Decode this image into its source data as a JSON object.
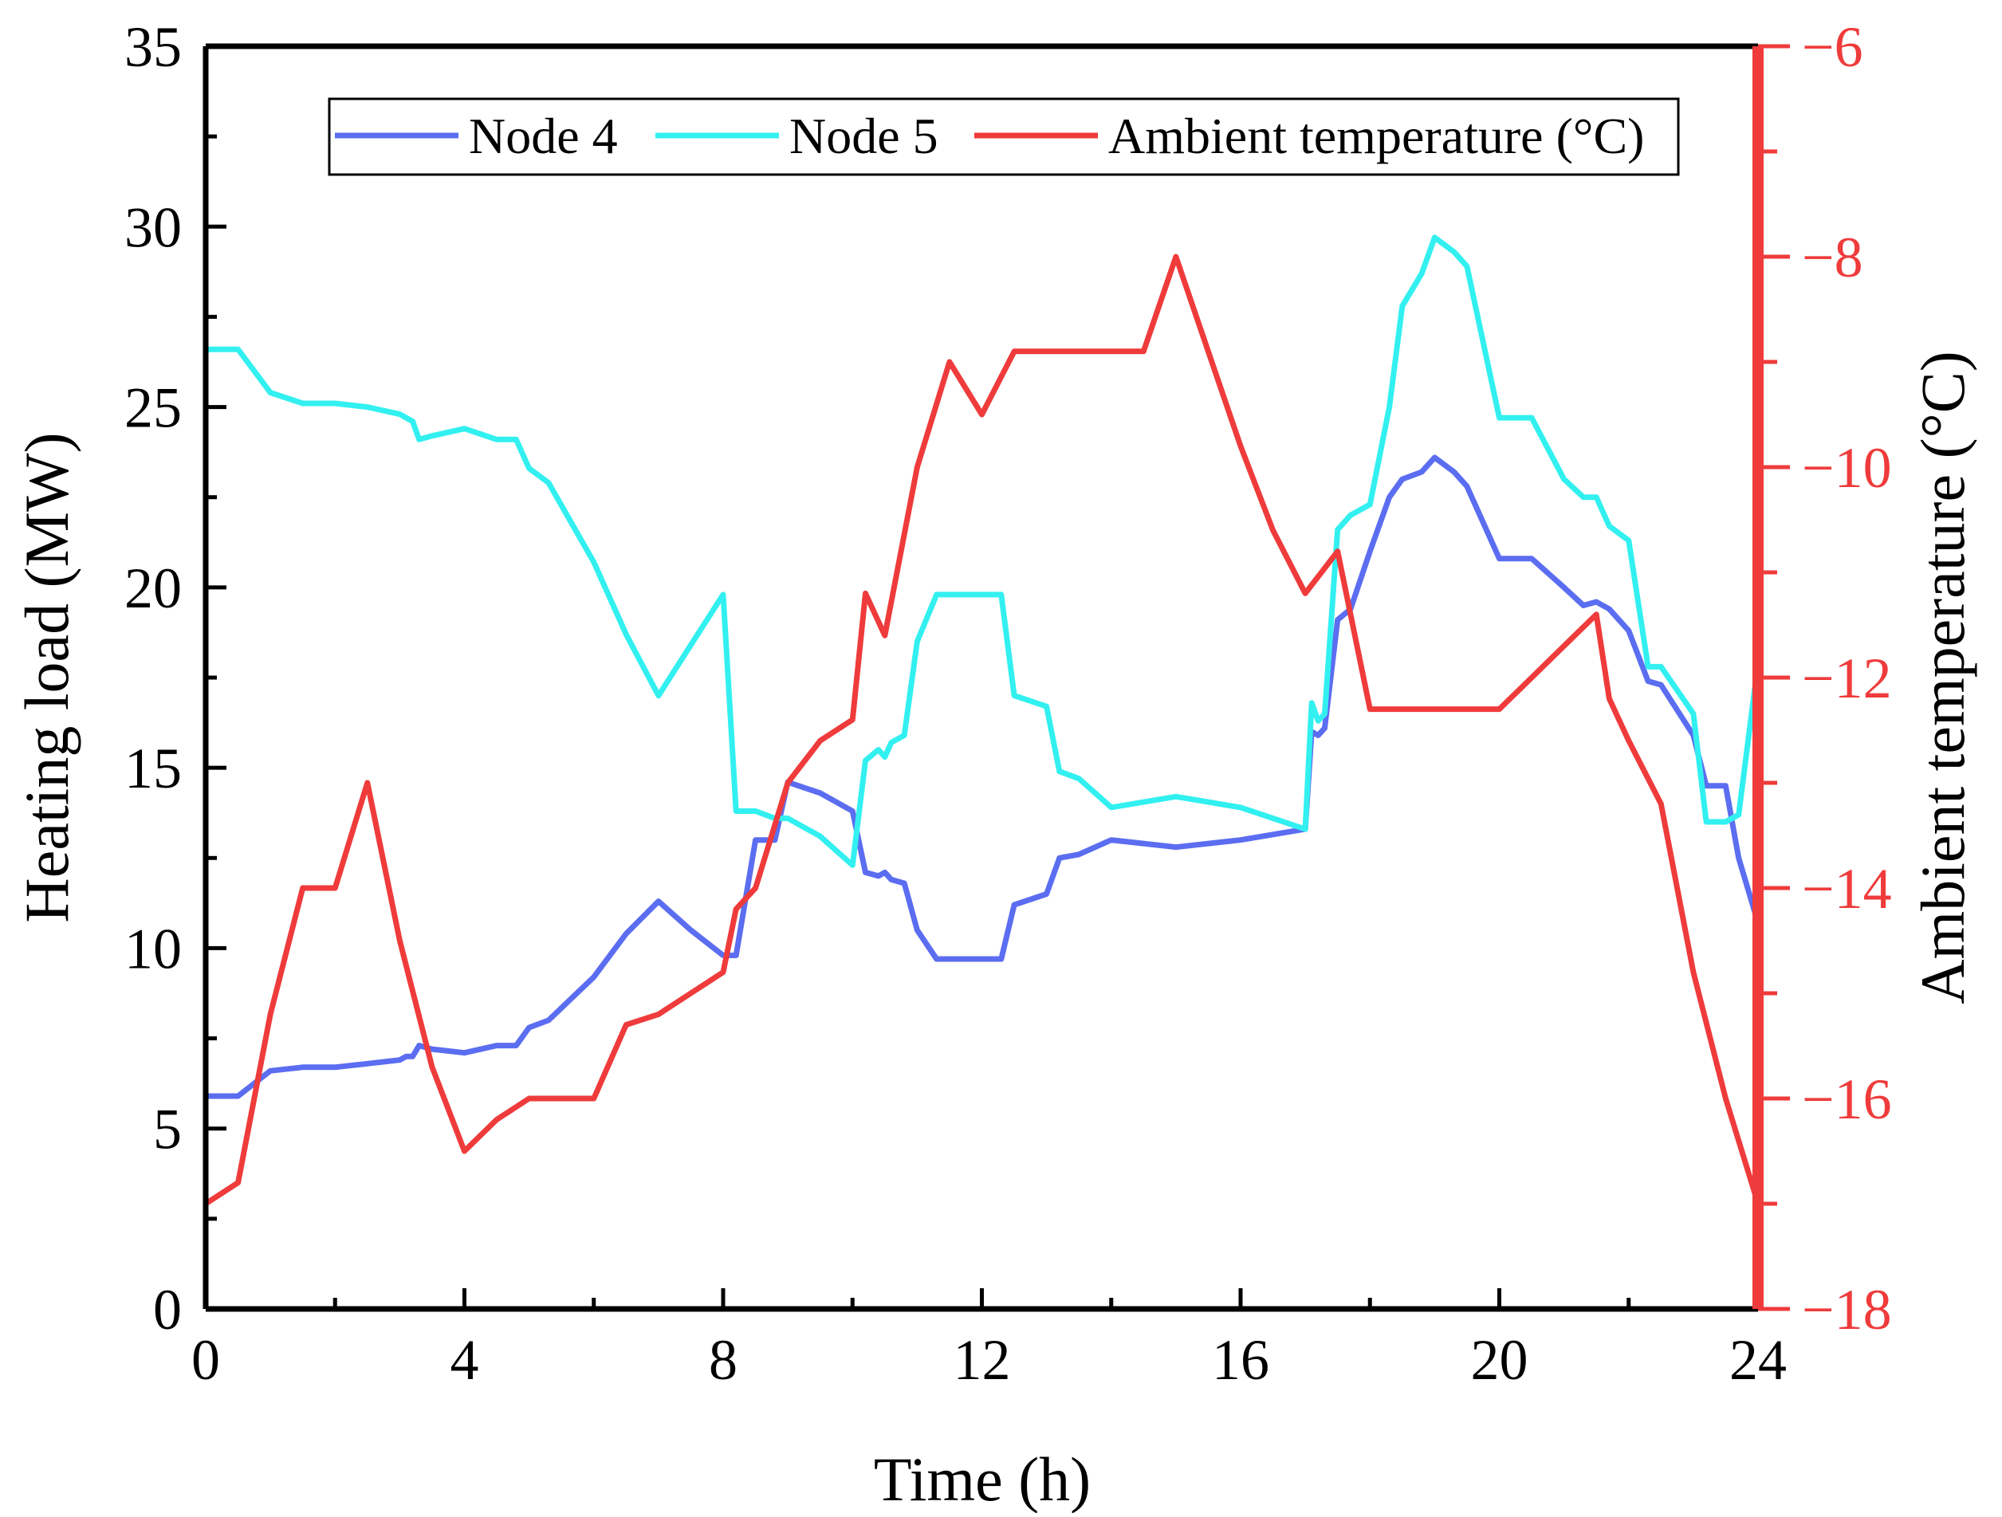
{
  "chart_data": {
    "type": "line",
    "title": "",
    "xlabel": "Time (h)",
    "ylabel": "Heating load (MW)",
    "y2label": "Ambient temperature (°C)",
    "xlim": [
      0,
      24
    ],
    "ylim": [
      0,
      35
    ],
    "y2lim": [
      -18,
      -6
    ],
    "xticks": [
      0,
      4,
      8,
      12,
      16,
      20,
      24
    ],
    "yticks": [
      0,
      5,
      10,
      15,
      20,
      25,
      30,
      35
    ],
    "y2ticks": [
      -18,
      -16,
      -14,
      -12,
      -10,
      -8,
      -6
    ],
    "xtick_labels": [
      "0",
      "4",
      "8",
      "12",
      "16",
      "20",
      "24"
    ],
    "ytick_labels": [
      "0",
      "5",
      "10",
      "15",
      "20",
      "25",
      "30",
      "35"
    ],
    "y2tick_labels": [
      "−18",
      "−16",
      "−14",
      "−12",
      "−10",
      "−8",
      "−6"
    ],
    "grid": false,
    "legend": {
      "placement": "top-center",
      "entries": [
        "Node 4",
        "Node 5",
        "Ambient temperature (°C)"
      ]
    },
    "colors": {
      "node4": "#5B6DF0",
      "node5": "#33F0F0",
      "ambient": "#EF3B3B",
      "axis": "#000000",
      "right_axis": "#EF3B3B"
    },
    "series": [
      {
        "name": "Node 4",
        "axis": "left",
        "color": "#5B6DF0",
        "x": [
          0,
          0.5,
          1,
          1.5,
          2,
          2.5,
          3,
          3.1,
          3.2,
          3.3,
          3.5,
          4,
          4.5,
          4.8,
          5,
          5.3,
          6,
          6.5,
          7,
          7.5,
          8,
          8.2,
          8.5,
          8.8,
          9,
          9.5,
          10,
          10.2,
          10.4,
          10.5,
          10.6,
          10.8,
          11,
          11.3,
          11.5,
          12,
          12.3,
          12.5,
          13,
          13.2,
          13.5,
          14,
          15,
          16,
          17,
          17.1,
          17.2,
          17.3,
          17.5,
          17.7,
          18,
          18.3,
          18.5,
          18.8,
          19,
          19.3,
          19.5,
          20,
          20.5,
          21,
          21.3,
          21.5,
          21.7,
          22,
          22.3,
          22.5,
          23,
          23.2,
          23.5,
          23.7,
          24
        ],
        "y": [
          5.9,
          5.9,
          6.6,
          6.7,
          6.7,
          6.8,
          6.9,
          7.0,
          7.0,
          7.3,
          7.2,
          7.1,
          7.3,
          7.3,
          7.8,
          8.0,
          9.2,
          10.4,
          11.3,
          10.5,
          9.8,
          9.8,
          13.0,
          13.0,
          14.6,
          14.3,
          13.8,
          12.1,
          12.0,
          12.1,
          11.9,
          11.8,
          10.5,
          9.7,
          9.7,
          9.7,
          9.7,
          11.2,
          11.5,
          12.5,
          12.6,
          13.0,
          12.8,
          13.0,
          13.3,
          16.0,
          15.9,
          16.1,
          19.1,
          19.4,
          21.0,
          22.5,
          23.0,
          23.2,
          23.6,
          23.2,
          22.8,
          20.8,
          20.8,
          20.0,
          19.5,
          19.6,
          19.4,
          18.8,
          17.4,
          17.3,
          15.9,
          14.5,
          14.5,
          12.5,
          10.7
        ]
      },
      {
        "name": "Node 5",
        "axis": "left",
        "color": "#33F0F0",
        "x": [
          0,
          0.5,
          1,
          1.5,
          2,
          2.5,
          3,
          3.1,
          3.2,
          3.3,
          3.5,
          4,
          4.5,
          4.8,
          5,
          5.3,
          6,
          6.5,
          7,
          7.5,
          8,
          8.2,
          8.5,
          8.8,
          9,
          9.5,
          10,
          10.2,
          10.4,
          10.5,
          10.6,
          10.8,
          11,
          11.3,
          11.5,
          12,
          12.3,
          12.5,
          13,
          13.2,
          13.5,
          14,
          15,
          16,
          17,
          17.1,
          17.2,
          17.3,
          17.5,
          17.7,
          18,
          18.3,
          18.5,
          18.8,
          19,
          19.3,
          19.5,
          20,
          20.5,
          21,
          21.3,
          21.5,
          21.7,
          22,
          22.3,
          22.5,
          23,
          23.2,
          23.5,
          23.7,
          24
        ],
        "y": [
          26.6,
          26.6,
          25.4,
          25.1,
          25.1,
          25.0,
          24.8,
          24.7,
          24.6,
          24.1,
          24.2,
          24.4,
          24.1,
          24.1,
          23.3,
          22.9,
          20.7,
          18.7,
          17.0,
          18.4,
          19.8,
          13.8,
          13.8,
          13.6,
          13.6,
          13.1,
          12.3,
          15.2,
          15.5,
          15.3,
          15.7,
          15.9,
          18.5,
          19.8,
          19.8,
          19.8,
          19.8,
          17.0,
          16.7,
          14.9,
          14.7,
          13.9,
          14.2,
          13.9,
          13.3,
          16.8,
          16.3,
          16.5,
          21.6,
          22.0,
          22.3,
          25.0,
          27.8,
          28.7,
          29.7,
          29.3,
          28.9,
          24.7,
          24.7,
          23.0,
          22.5,
          22.5,
          21.7,
          21.3,
          17.8,
          17.8,
          16.5,
          13.5,
          13.5,
          13.7,
          17.9
        ]
      },
      {
        "name": "Ambient temperature (°C)",
        "axis": "right",
        "color": "#EF3B3B",
        "x": [
          0,
          0.5,
          1,
          1.5,
          2,
          2.5,
          3,
          3.5,
          4,
          4.5,
          5,
          5.5,
          6,
          6.5,
          7,
          7.5,
          8,
          8.2,
          8.5,
          9,
          9.5,
          10,
          10.2,
          10.5,
          11,
          11.5,
          12,
          12.5,
          13,
          13.5,
          14,
          14.5,
          15,
          15.5,
          16,
          16.5,
          17,
          17.5,
          18,
          18.5,
          19,
          19.5,
          20,
          20.5,
          21,
          21.5,
          21.7,
          22,
          22.5,
          23,
          23.5,
          24
        ],
        "y": [
          -17.0,
          -16.8,
          -15.2,
          -14.0,
          -14.0,
          -13.0,
          -14.5,
          -15.7,
          -16.5,
          -16.2,
          -16.0,
          -16.0,
          -16.0,
          -15.3,
          -15.2,
          -15.0,
          -14.8,
          -14.2,
          -14.0,
          -13.0,
          -12.6,
          -12.4,
          -11.2,
          -11.6,
          -10.0,
          -9.0,
          -9.5,
          -8.9,
          -8.9,
          -8.9,
          -8.9,
          -8.9,
          -8.0,
          -8.9,
          -9.8,
          -10.6,
          -11.2,
          -10.8,
          -12.3,
          -12.3,
          -12.3,
          -12.3,
          -12.3,
          -12.0,
          -11.7,
          -11.4,
          -12.2,
          -12.6,
          -13.2,
          -14.8,
          -16.0,
          -17.0
        ]
      }
    ]
  }
}
